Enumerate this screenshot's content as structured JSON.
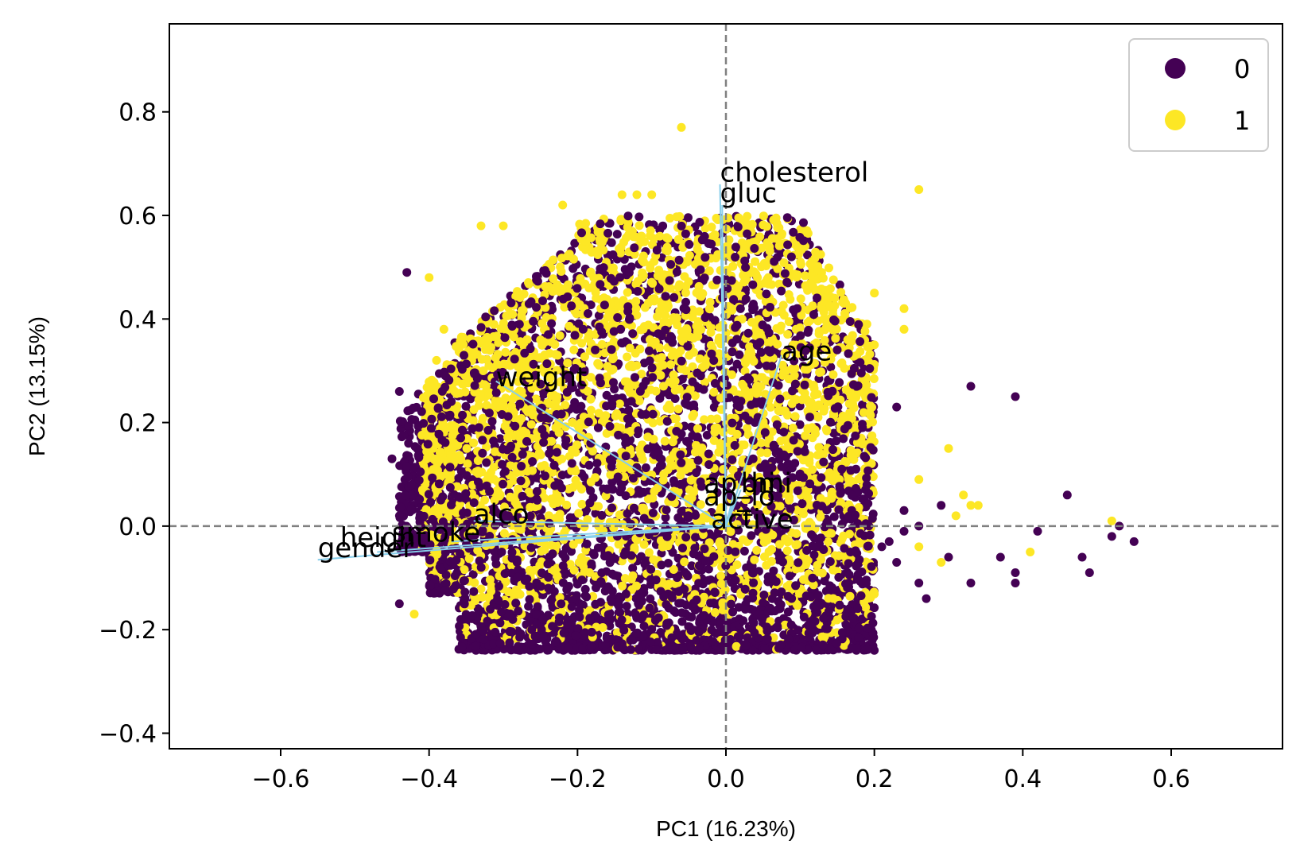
{
  "chart_data": {
    "type": "scatter",
    "title": "",
    "xlabel": "PC1 (16.23%)",
    "ylabel": "PC2 (13.15%)",
    "xlim": [
      -0.75,
      0.75
    ],
    "ylim": [
      -0.43,
      0.97
    ],
    "xticks": [
      -0.6,
      -0.4,
      -0.2,
      0.0,
      0.2,
      0.4,
      0.6
    ],
    "yticks": [
      -0.4,
      -0.2,
      0.0,
      0.2,
      0.4,
      0.6,
      0.8
    ],
    "xtick_labels": [
      "−0.6",
      "−0.4",
      "−0.2",
      "0.0",
      "0.2",
      "0.4",
      "0.6"
    ],
    "ytick_labels": [
      "−0.4",
      "−0.2",
      "0.0",
      "0.2",
      "0.4",
      "0.6",
      "0.8"
    ],
    "grid": false,
    "reference_lines": {
      "x": 0.0,
      "y": 0.0,
      "style": "dashed",
      "color": "#808080"
    },
    "legend": {
      "placement": "top-right",
      "entries": [
        {
          "label": "0",
          "color": "#440154"
        },
        {
          "label": "1",
          "color": "#fde725"
        }
      ]
    },
    "series": [
      {
        "name": "0",
        "color": "#440154",
        "cloud": {
          "x_range": [
            -0.44,
            0.2
          ],
          "y_range": [
            -0.24,
            0.45
          ],
          "center": [
            -0.08,
            -0.12
          ]
        },
        "outliers": [
          [
            -0.43,
            0.49
          ],
          [
            -0.44,
            0.26
          ],
          [
            -0.45,
            0.13
          ],
          [
            -0.44,
            -0.15
          ],
          [
            0.23,
            0.23
          ],
          [
            0.33,
            0.27
          ],
          [
            0.39,
            0.25
          ],
          [
            0.46,
            0.06
          ],
          [
            0.48,
            -0.06
          ],
          [
            0.49,
            -0.09
          ],
          [
            0.53,
            0.0
          ],
          [
            0.55,
            -0.03
          ],
          [
            0.52,
            -0.02
          ],
          [
            0.42,
            -0.01
          ],
          [
            0.37,
            -0.06
          ],
          [
            0.39,
            -0.09
          ],
          [
            0.39,
            -0.11
          ],
          [
            0.33,
            -0.11
          ],
          [
            0.3,
            -0.06
          ],
          [
            0.27,
            -0.14
          ],
          [
            0.26,
            -0.11
          ],
          [
            0.22,
            -0.03
          ],
          [
            0.24,
            -0.01
          ],
          [
            0.26,
            0.0
          ],
          [
            0.29,
            0.04
          ],
          [
            0.24,
            0.03
          ],
          [
            0.21,
            -0.04
          ],
          [
            0.23,
            -0.07
          ]
        ]
      },
      {
        "name": "1",
        "color": "#fde725",
        "cloud": {
          "x_range": [
            -0.41,
            0.2
          ],
          "y_range": [
            -0.21,
            0.62
          ],
          "center": [
            -0.08,
            0.18
          ]
        },
        "outliers": [
          [
            -0.06,
            0.77
          ],
          [
            0.26,
            0.65
          ],
          [
            -0.22,
            0.62
          ],
          [
            -0.14,
            0.64
          ],
          [
            -0.12,
            0.64
          ],
          [
            -0.1,
            0.64
          ],
          [
            -0.3,
            0.58
          ],
          [
            -0.33,
            0.58
          ],
          [
            0.2,
            0.45
          ],
          [
            0.24,
            0.42
          ],
          [
            0.24,
            0.38
          ],
          [
            0.19,
            0.39
          ],
          [
            0.2,
            0.35
          ],
          [
            0.3,
            0.15
          ],
          [
            0.32,
            0.06
          ],
          [
            0.33,
            0.04
          ],
          [
            0.34,
            0.04
          ],
          [
            0.31,
            0.02
          ],
          [
            0.41,
            -0.05
          ],
          [
            0.52,
            0.01
          ],
          [
            0.26,
            0.09
          ],
          [
            0.26,
            -0.04
          ],
          [
            0.29,
            -0.07
          ],
          [
            -0.42,
            -0.17
          ],
          [
            -0.4,
            0.48
          ],
          [
            -0.38,
            0.38
          ],
          [
            -0.39,
            0.32
          ]
        ]
      }
    ],
    "loadings": [
      {
        "label": "cholesterol",
        "x": -0.008,
        "y": 0.66,
        "label_x": -0.008,
        "label_y": 0.665
      },
      {
        "label": "gluc",
        "x": -0.005,
        "y": 0.62,
        "label_x": -0.008,
        "label_y": 0.625
      },
      {
        "label": "age",
        "x": 0.075,
        "y": 0.33,
        "label_x": 0.075,
        "label_y": 0.32
      },
      {
        "label": "weight",
        "x": -0.31,
        "y": 0.28,
        "label_x": -0.31,
        "label_y": 0.27
      },
      {
        "label": "ap_hi",
        "x": 0.02,
        "y": 0.07,
        "label_x": -0.03,
        "label_y": 0.065
      },
      {
        "label": "ap_lo",
        "x": 0.01,
        "y": 0.06,
        "label_x": -0.03,
        "label_y": 0.04
      },
      {
        "label": "bmi",
        "x": 0.015,
        "y": 0.055,
        "label_x": 0.02,
        "label_y": 0.065
      },
      {
        "label": "alco",
        "x": -0.34,
        "y": 0.01,
        "label_x": -0.34,
        "label_y": 0.005
      },
      {
        "label": "active",
        "x": 0.01,
        "y": 0.0,
        "label_x": -0.02,
        "label_y": -0.005
      },
      {
        "label": "smoke",
        "x": -0.37,
        "y": -0.03,
        "label_x": -0.45,
        "label_y": -0.03
      },
      {
        "label": "height",
        "x": -0.47,
        "y": -0.05,
        "label_x": -0.52,
        "label_y": -0.04
      },
      {
        "label": "gender",
        "x": -0.55,
        "y": -0.065,
        "label_x": -0.55,
        "label_y": -0.06
      }
    ]
  }
}
